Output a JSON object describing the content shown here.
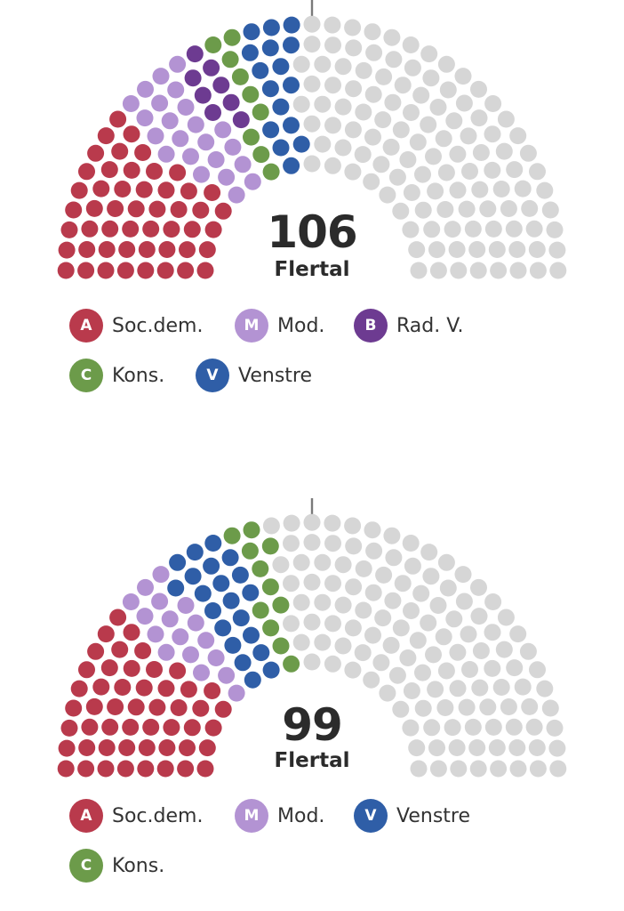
{
  "colors": {
    "A": "#b93a4c",
    "M": "#b393d3",
    "B": "#6d3b91",
    "C": "#6c9b4a",
    "V": "#2f5ea7",
    "empty": "#d6d6d6",
    "majority_line": "#7a7a7a"
  },
  "chart_data": [
    {
      "type": "parliament",
      "total_seats": 179,
      "majority_value": "106",
      "majority_label": "Flertal",
      "series": [
        {
          "key": "A",
          "badge": "A",
          "name": "Soc.dem.",
          "seats": 50
        },
        {
          "key": "M",
          "badge": "M",
          "name": "Mod.",
          "seats": 23
        },
        {
          "key": "B",
          "badge": "B",
          "name": "Rad. V.",
          "seats": 8
        },
        {
          "key": "C",
          "badge": "C",
          "name": "Kons.",
          "seats": 9
        },
        {
          "key": "V",
          "badge": "V",
          "name": "Venstre",
          "seats": 16
        }
      ]
    },
    {
      "type": "parliament",
      "total_seats": 179,
      "majority_value": "99",
      "majority_label": "Flertal",
      "series": [
        {
          "key": "A",
          "badge": "A",
          "name": "Soc.dem.",
          "seats": 50
        },
        {
          "key": "M",
          "badge": "M",
          "name": "Mod.",
          "seats": 17
        },
        {
          "key": "V",
          "badge": "V",
          "name": "Venstre",
          "seats": 21
        },
        {
          "key": "C",
          "badge": "C",
          "name": "Kons.",
          "seats": 11
        }
      ]
    }
  ]
}
